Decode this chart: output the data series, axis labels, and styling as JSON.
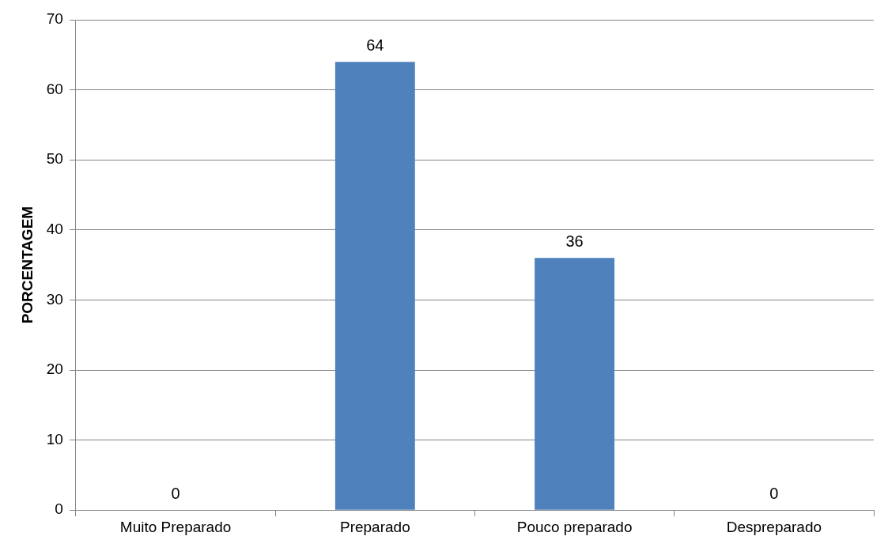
{
  "chart_data": {
    "type": "bar",
    "ylabel": "PORCENTAGEM",
    "categories": [
      "Muito Preparado",
      "Preparado",
      "Pouco preparado",
      "Despreparado"
    ],
    "values": [
      0,
      64,
      36,
      0
    ],
    "color": "#4f81bd",
    "ylim": [
      0,
      70
    ],
    "yticks": [
      0,
      10,
      20,
      30,
      40,
      50,
      60,
      70
    ],
    "grid": "y",
    "data_labels": true,
    "legend": false
  }
}
